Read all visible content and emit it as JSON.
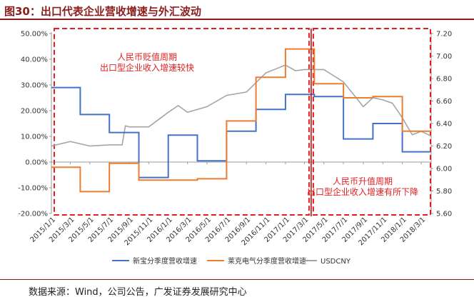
{
  "title": "图30：出口代表企业营收增速与外汇波动",
  "source": "数据来源：Wind，公司公告，广发证券发展研究中心",
  "chart_data": {
    "type": "line",
    "x": [
      "2015/1/1",
      "2015/3/1",
      "2015/5/1",
      "2015/7/1",
      "2015/9/1",
      "2015/11/1",
      "2016/1/1",
      "2016/3/1",
      "2016/5/1",
      "2016/7/1",
      "2016/9/1",
      "2016/11/1",
      "2017/1/1",
      "2017/3/1",
      "2017/5/1",
      "2017/7/1",
      "2017/9/1",
      "2017/11/1",
      "2018/1/1",
      "2018/3/1"
    ],
    "y_left": {
      "ticks": [
        "-20.00%",
        "-10.00%",
        "0.00%",
        "10.00%",
        "20.00%",
        "30.00%",
        "40.00%",
        "50.00%"
      ],
      "min": -20,
      "max": 50
    },
    "y_right": {
      "ticks": [
        "5.60",
        "5.80",
        "6.00",
        "6.20",
        "6.40",
        "6.60",
        "6.80",
        "7.00",
        "7.20"
      ],
      "min": 5.6,
      "max": 7.2
    },
    "series": [
      {
        "name": "新宝分季度营收增速",
        "axis": "left",
        "color": "#4472C4",
        "step": true,
        "points": [
          [
            "2015/1/1",
            29
          ],
          [
            "2015/4/1",
            18.5
          ],
          [
            "2015/7/1",
            11.5
          ],
          [
            "2015/10/1",
            -6
          ],
          [
            "2016/1/1",
            10.5
          ],
          [
            "2016/4/1",
            0.5
          ],
          [
            "2016/7/1",
            12
          ],
          [
            "2016/10/1",
            20.5
          ],
          [
            "2017/1/1",
            26.3
          ],
          [
            "2017/4/1",
            25.5
          ],
          [
            "2017/7/1",
            9
          ],
          [
            "2017/10/1",
            15
          ],
          [
            "2018/1/1",
            4
          ],
          [
            "2018/3/31",
            4
          ]
        ]
      },
      {
        "name": "莱克电气分季度营收增速",
        "axis": "left",
        "color": "#ED7D31",
        "step": true,
        "points": [
          [
            "2015/1/1",
            -2
          ],
          [
            "2015/4/1",
            -11.5
          ],
          [
            "2015/7/1",
            -0.5
          ],
          [
            "2015/10/1",
            -7
          ],
          [
            "2016/1/1",
            -7
          ],
          [
            "2016/4/1",
            -6.5
          ],
          [
            "2016/7/1",
            16
          ],
          [
            "2016/10/1",
            33
          ],
          [
            "2017/1/1",
            44
          ],
          [
            "2017/4/1",
            30.5
          ],
          [
            "2017/7/1",
            25
          ],
          [
            "2017/10/1",
            25.5
          ],
          [
            "2018/1/1",
            12
          ],
          [
            "2018/3/31",
            12
          ]
        ]
      },
      {
        "name": "USDCNY",
        "axis": "right",
        "color": "#A5A5A5",
        "step": false,
        "points": [
          [
            "2015/1/1",
            6.2
          ],
          [
            "2015/3/1",
            6.24
          ],
          [
            "2015/5/1",
            6.2
          ],
          [
            "2015/7/1",
            6.21
          ],
          [
            "2015/8/10",
            6.21
          ],
          [
            "2015/8/20",
            6.38
          ],
          [
            "2015/9/1",
            6.37
          ],
          [
            "2015/11/1",
            6.37
          ],
          [
            "2016/1/1",
            6.5
          ],
          [
            "2016/2/1",
            6.56
          ],
          [
            "2016/3/1",
            6.5
          ],
          [
            "2016/5/1",
            6.55
          ],
          [
            "2016/7/1",
            6.65
          ],
          [
            "2016/9/1",
            6.68
          ],
          [
            "2016/11/1",
            6.85
          ],
          [
            "2017/1/1",
            6.92
          ],
          [
            "2017/2/1",
            6.87
          ],
          [
            "2017/3/1",
            6.88
          ],
          [
            "2017/5/1",
            6.88
          ],
          [
            "2017/7/1",
            6.77
          ],
          [
            "2017/9/1",
            6.55
          ],
          [
            "2017/10/1",
            6.63
          ],
          [
            "2017/11/1",
            6.61
          ],
          [
            "2017/12/1",
            6.58
          ],
          [
            "2018/1/1",
            6.45
          ],
          [
            "2018/2/1",
            6.3
          ],
          [
            "2018/3/1",
            6.33
          ],
          [
            "2018/3/31",
            6.29
          ]
        ]
      }
    ],
    "annotations": [
      {
        "lines": [
          "人民币贬值周期",
          "出口型企业收入增速较快"
        ]
      },
      {
        "lines": [
          "人民币升值周期",
          "出口型企业收入增速有所下降"
        ]
      }
    ],
    "divider_date": "2017/1/1",
    "legend_position": "bottom"
  }
}
